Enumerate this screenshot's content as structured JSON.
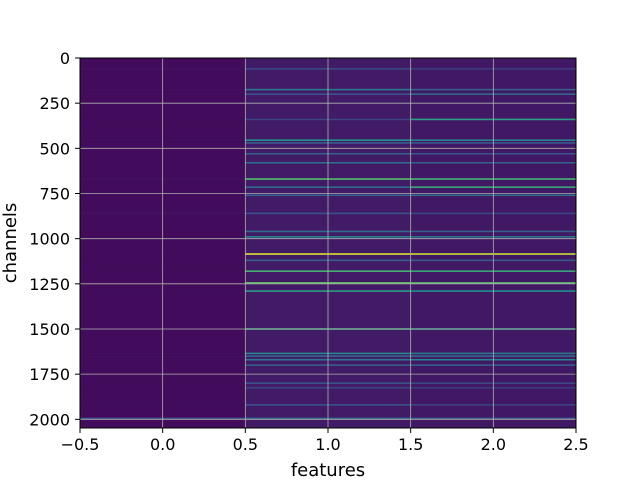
{
  "chart_data": {
    "type": "heatmap",
    "title": "",
    "xlabel": "features",
    "ylabel": "channels",
    "columns": [
      0,
      1,
      2
    ],
    "xlim": [
      -0.5,
      2.5
    ],
    "ylim": [
      2048,
      0
    ],
    "x_ticks": [
      -0.5,
      0.0,
      0.5,
      1.0,
      1.5,
      2.0,
      2.5
    ],
    "x_tick_labels": [
      "−0.5",
      "0.0",
      "0.5",
      "1.0",
      "1.5",
      "2.0",
      "2.5"
    ],
    "y_ticks": [
      0,
      250,
      500,
      750,
      1000,
      1250,
      1500,
      1750,
      2000
    ],
    "y_tick_labels": [
      "0",
      "250",
      "500",
      "750",
      "1000",
      "1250",
      "1500",
      "1750",
      "2000"
    ],
    "colormap": "viridis",
    "grid": true,
    "background_value": 0.05,
    "column_background": [
      0.03,
      0.08,
      0.07
    ],
    "rows": [
      {
        "channel": 60,
        "values": [
          0.05,
          0.22,
          0.18
        ]
      },
      {
        "channel": 175,
        "values": [
          0.04,
          0.4,
          0.3
        ]
      },
      {
        "channel": 200,
        "values": [
          0.04,
          0.25,
          0.35
        ]
      },
      {
        "channel": 340,
        "values": [
          0.03,
          0.2,
          0.55
        ]
      },
      {
        "channel": 455,
        "values": [
          0.04,
          0.5,
          0.45
        ]
      },
      {
        "channel": 470,
        "values": [
          0.04,
          0.3,
          0.28
        ]
      },
      {
        "channel": 530,
        "values": [
          0.03,
          0.3,
          0.25
        ]
      },
      {
        "channel": 580,
        "values": [
          0.03,
          0.35,
          0.3
        ]
      },
      {
        "channel": 670,
        "values": [
          0.05,
          0.7,
          0.65
        ]
      },
      {
        "channel": 715,
        "values": [
          0.03,
          0.35,
          0.6
        ]
      },
      {
        "channel": 760,
        "values": [
          0.03,
          0.3,
          0.35
        ]
      },
      {
        "channel": 860,
        "values": [
          0.06,
          0.25,
          0.22
        ]
      },
      {
        "channel": 960,
        "values": [
          0.03,
          0.35,
          0.3
        ]
      },
      {
        "channel": 990,
        "values": [
          0.04,
          0.45,
          0.4
        ]
      },
      {
        "channel": 1085,
        "values": [
          0.04,
          0.95,
          0.92
        ]
      },
      {
        "channel": 1120,
        "values": [
          0.03,
          0.3,
          0.28
        ]
      },
      {
        "channel": 1180,
        "values": [
          0.04,
          0.65,
          0.6
        ]
      },
      {
        "channel": 1245,
        "values": [
          0.04,
          0.75,
          0.7
        ]
      },
      {
        "channel": 1290,
        "values": [
          0.04,
          0.55,
          0.5
        ]
      },
      {
        "channel": 1500,
        "values": [
          0.04,
          0.6,
          0.55
        ]
      },
      {
        "channel": 1635,
        "values": [
          0.04,
          0.45,
          0.4
        ]
      },
      {
        "channel": 1650,
        "values": [
          0.04,
          0.35,
          0.35
        ]
      },
      {
        "channel": 1670,
        "values": [
          0.04,
          0.4,
          0.45
        ]
      },
      {
        "channel": 1700,
        "values": [
          0.04,
          0.3,
          0.3
        ]
      },
      {
        "channel": 1800,
        "values": [
          0.04,
          0.25,
          0.22
        ]
      },
      {
        "channel": 1825,
        "values": [
          0.03,
          0.2,
          0.18
        ]
      },
      {
        "channel": 1920,
        "values": [
          0.04,
          0.25,
          0.2
        ]
      },
      {
        "channel": 1995,
        "values": [
          0.25,
          0.35,
          0.3
        ]
      }
    ]
  }
}
